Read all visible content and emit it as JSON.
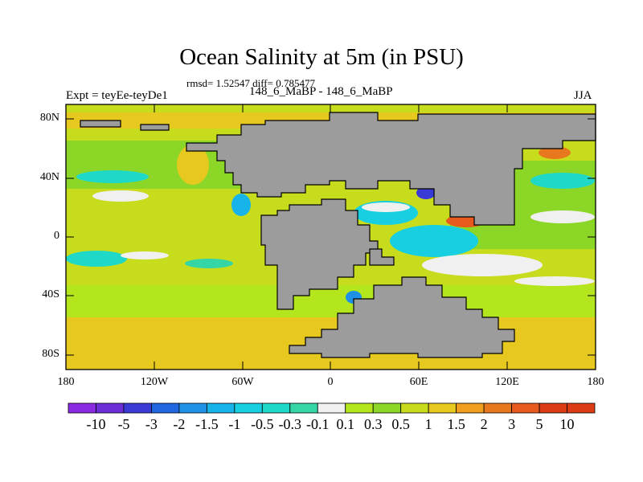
{
  "figure": {
    "title": "Ocean Salinity at 5m (in PSU)",
    "stats": "rmsd= 1.52547 diff= 0.785477",
    "subtitle": "148_6_MaBP - 148_6_MaBP",
    "experiment": "Expt = teyEe-teyDe1",
    "season": "JJA"
  },
  "axes": {
    "lat_ticks": [
      "80N",
      "40N",
      "0",
      "40S",
      "80S"
    ],
    "lon_ticks": [
      "180",
      "120W",
      "60W",
      "0",
      "60E",
      "120E",
      "180"
    ]
  },
  "colorbar": {
    "labels": [
      "-10",
      "-5",
      "-3",
      "-2",
      "-1.5",
      "-1",
      "-0.5",
      "-0.3",
      "-0.1",
      "0.1",
      "0.3",
      "0.5",
      "1",
      "1.5",
      "2",
      "3",
      "5",
      "10"
    ],
    "colors": [
      "#8a2be2",
      "#6a2fd6",
      "#3a3ad6",
      "#1f66e0",
      "#1e90e6",
      "#16b4e8",
      "#17cfe0",
      "#20d8c8",
      "#34d6a6",
      "#f0f0f0",
      "#b4e61e",
      "#8cd628",
      "#c8dc1e",
      "#e6c81e",
      "#f0a01e",
      "#e8781e",
      "#e65a1e",
      "#dc3c14",
      "#dc3c14"
    ]
  },
  "map_colors": {
    "land": "#9c9c9c",
    "ocean_base": "#c8dc1e",
    "coastline": "#000000"
  }
}
